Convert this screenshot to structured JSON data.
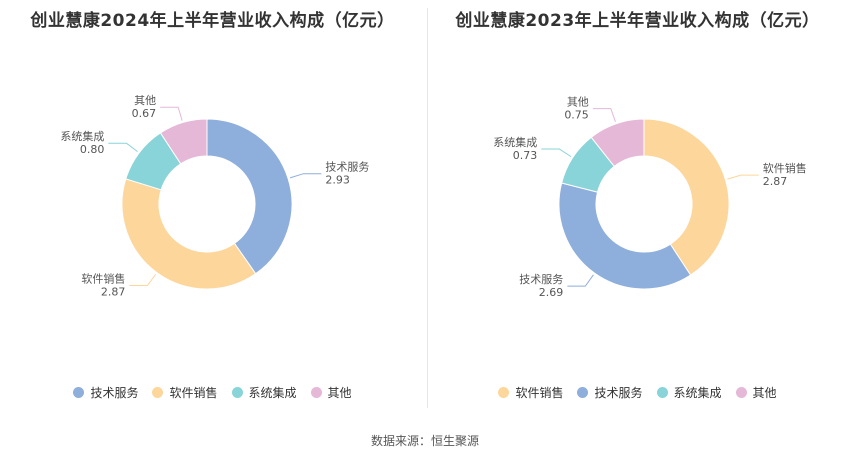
{
  "colors": {
    "tech": "#8eaedc",
    "software": "#fdd69b",
    "system": "#88d4d9",
    "other": "#e6b8d8"
  },
  "chart_data": [
    {
      "type": "pie",
      "title": "创业慧康2024年上半年营业收入构成（亿元）",
      "slices": [
        {
          "label": "技术服务",
          "value": 2.93,
          "value_text": "2.93",
          "color": "#8eaedc"
        },
        {
          "label": "软件销售",
          "value": 2.87,
          "value_text": "2.87",
          "color": "#fdd69b"
        },
        {
          "label": "系统集成",
          "value": 0.8,
          "value_text": "0.80",
          "color": "#88d4d9"
        },
        {
          "label": "其他",
          "value": 0.67,
          "value_text": "0.67",
          "color": "#e6b8d8"
        }
      ],
      "legend": [
        "技术服务",
        "软件销售",
        "系统集成",
        "其他"
      ],
      "legend_placement": "bottom"
    },
    {
      "type": "pie",
      "title": "创业慧康2023年上半年营业收入构成（亿元）",
      "slices": [
        {
          "label": "软件销售",
          "value": 2.87,
          "value_text": "2.87",
          "color": "#fdd69b"
        },
        {
          "label": "技术服务",
          "value": 2.69,
          "value_text": "2.69",
          "color": "#8eaedc"
        },
        {
          "label": "系统集成",
          "value": 0.73,
          "value_text": "0.73",
          "color": "#88d4d9"
        },
        {
          "label": "其他",
          "value": 0.75,
          "value_text": "0.75",
          "color": "#e6b8d8"
        }
      ],
      "legend": [
        "软件销售",
        "技术服务",
        "系统集成",
        "其他"
      ],
      "legend_placement": "bottom"
    }
  ],
  "footer": {
    "source": "数据来源：恒生聚源"
  }
}
